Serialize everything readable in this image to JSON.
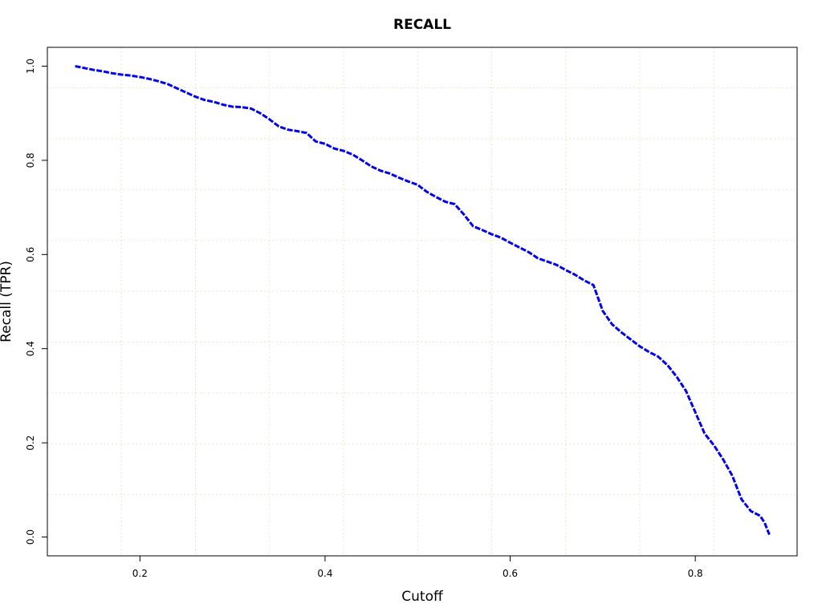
{
  "chart_data": {
    "type": "line",
    "title": "RECALL",
    "xlabel": "Cutoff",
    "ylabel": "Recall (TPR)",
    "xlim": [
      0.1,
      0.91
    ],
    "ylim": [
      -0.04,
      1.04
    ],
    "x_ticks": [
      "0.2",
      "0.4",
      "0.6",
      "0.8"
    ],
    "y_ticks": [
      "0.0",
      "0.2",
      "0.4",
      "0.6",
      "0.8",
      "1.0"
    ],
    "grid": true,
    "grid_x": [
      0.18,
      0.26,
      0.34,
      0.42,
      0.5,
      0.58,
      0.66,
      0.74,
      0.82
    ],
    "grid_y": [
      0.09,
      0.198,
      0.306,
      0.414,
      0.522,
      0.63,
      0.738,
      0.846,
      0.954
    ],
    "grid_color": "#e6e8c8",
    "line_color": "#0000ee",
    "line_style": "dashed",
    "series": [
      {
        "x": [
          0.13,
          0.14,
          0.15,
          0.16,
          0.17,
          0.18,
          0.19,
          0.2,
          0.21,
          0.22,
          0.23,
          0.24,
          0.25,
          0.26,
          0.27,
          0.28,
          0.29,
          0.3,
          0.31,
          0.32,
          0.33,
          0.34,
          0.35,
          0.36,
          0.37,
          0.38,
          0.39,
          0.4,
          0.41,
          0.42,
          0.43,
          0.44,
          0.45,
          0.46,
          0.47,
          0.48,
          0.49,
          0.5,
          0.51,
          0.52,
          0.53,
          0.54,
          0.55,
          0.56,
          0.57,
          0.58,
          0.59,
          0.6,
          0.61,
          0.62,
          0.63,
          0.64,
          0.65,
          0.66,
          0.67,
          0.68,
          0.69,
          0.7,
          0.71,
          0.72,
          0.73,
          0.74,
          0.75,
          0.76,
          0.77,
          0.78,
          0.79,
          0.8,
          0.81,
          0.82,
          0.83,
          0.84,
          0.85,
          0.86,
          0.87,
          0.875,
          0.88
        ],
        "y": [
          1.0,
          0.996,
          0.992,
          0.989,
          0.985,
          0.982,
          0.98,
          0.977,
          0.973,
          0.968,
          0.962,
          0.953,
          0.944,
          0.935,
          0.928,
          0.924,
          0.918,
          0.914,
          0.913,
          0.91,
          0.9,
          0.887,
          0.872,
          0.865,
          0.862,
          0.858,
          0.84,
          0.835,
          0.825,
          0.82,
          0.812,
          0.8,
          0.787,
          0.778,
          0.772,
          0.763,
          0.755,
          0.748,
          0.733,
          0.722,
          0.712,
          0.707,
          0.685,
          0.66,
          0.652,
          0.643,
          0.636,
          0.625,
          0.615,
          0.605,
          0.592,
          0.585,
          0.578,
          0.567,
          0.557,
          0.545,
          0.535,
          0.48,
          0.452,
          0.435,
          0.42,
          0.405,
          0.393,
          0.383,
          0.365,
          0.34,
          0.31,
          0.265,
          0.22,
          0.195,
          0.165,
          0.13,
          0.08,
          0.055,
          0.045,
          0.03,
          0.005
        ]
      }
    ]
  }
}
